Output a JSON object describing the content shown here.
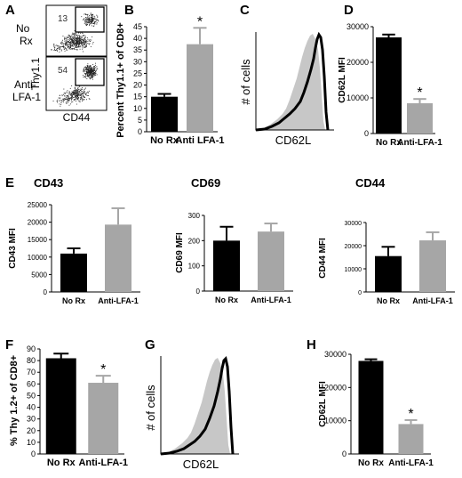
{
  "panels": {
    "A": {
      "letter": "A",
      "plots": [
        {
          "row_label_lines": [
            "No",
            "Rx"
          ],
          "gate_percent": "13"
        },
        {
          "row_label_lines": [
            "Anti-",
            "LFA-1"
          ],
          "gate_percent": "54"
        }
      ],
      "y_label": "Thy1.1",
      "x_label": "CD44"
    },
    "C": {
      "letter": "C",
      "y_label": "# of cells",
      "x_label": "CD62L"
    },
    "G": {
      "letter": "G",
      "y_label": "# of cells",
      "x_label": "CD62L"
    },
    "E": {
      "letter": "E"
    }
  },
  "chart_data": [
    {
      "id": "B",
      "letter": "B",
      "type": "bar",
      "title": "",
      "categories": [
        "No Rx",
        "Anti LFA-1"
      ],
      "values": [
        15,
        37.5
      ],
      "errors": [
        1.2,
        7
      ],
      "colors": [
        "#000000",
        "#a6a6a6"
      ],
      "ylabel": "Percent Thy1.1+ of CD8+",
      "ylim": [
        0,
        45
      ],
      "yticks": [
        0,
        5,
        10,
        15,
        20,
        25,
        30,
        35,
        40,
        45
      ],
      "significance": [
        "",
        "*"
      ]
    },
    {
      "id": "D",
      "letter": "D",
      "type": "bar",
      "title": "",
      "categories": [
        "No Rx",
        "Anti-LFA-1"
      ],
      "values": [
        27000,
        8500
      ],
      "errors": [
        800,
        1200
      ],
      "colors": [
        "#000000",
        "#a6a6a6"
      ],
      "ylabel": "CD62L MFI",
      "ylim": [
        0,
        30000
      ],
      "yticks": [
        0,
        10000,
        20000,
        30000
      ],
      "significance": [
        "",
        "*"
      ]
    },
    {
      "id": "E1",
      "letter": "",
      "type": "bar",
      "title": "CD43",
      "categories": [
        "No Rx",
        "Anti-LFA-1"
      ],
      "values": [
        11000,
        19300
      ],
      "errors": [
        1500,
        4700
      ],
      "colors": [
        "#000000",
        "#a6a6a6"
      ],
      "ylabel": "CD43 MFI",
      "ylim": [
        0,
        25000
      ],
      "yticks": [
        0,
        5000,
        10000,
        15000,
        20000,
        25000
      ],
      "significance": [
        "",
        ""
      ]
    },
    {
      "id": "E2",
      "letter": "",
      "type": "bar",
      "title": "CD69",
      "categories": [
        "No Rx",
        "Anti-LFA-1"
      ],
      "values": [
        200,
        236
      ],
      "errors": [
        55,
        32
      ],
      "colors": [
        "#000000",
        "#a6a6a6"
      ],
      "ylabel": "CD69 MFI",
      "ylim": [
        0,
        300
      ],
      "yticks": [
        0,
        100,
        200,
        300
      ],
      "significance": [
        "",
        ""
      ]
    },
    {
      "id": "E3",
      "letter": "",
      "type": "bar",
      "title": "CD44",
      "categories": [
        "No Rx",
        "Anti-LFA-1"
      ],
      "values": [
        15500,
        22300
      ],
      "errors": [
        4000,
        3500
      ],
      "colors": [
        "#000000",
        "#a6a6a6"
      ],
      "ylabel": "CD44 MFI",
      "ylim": [
        0,
        30000
      ],
      "yticks": [
        0,
        10000,
        20000,
        30000
      ],
      "significance": [
        "",
        ""
      ]
    },
    {
      "id": "F",
      "letter": "F",
      "type": "bar",
      "title": "",
      "categories": [
        "No Rx",
        "Anti-LFA-1"
      ],
      "values": [
        82,
        61
      ],
      "errors": [
        4,
        6
      ],
      "colors": [
        "#000000",
        "#a6a6a6"
      ],
      "ylabel": "% Thy 1.2+ of CD8+",
      "ylim": [
        0,
        90
      ],
      "yticks": [
        0,
        10,
        20,
        30,
        40,
        50,
        60,
        70,
        80,
        90
      ],
      "significance": [
        "",
        "*"
      ]
    },
    {
      "id": "H",
      "letter": "H",
      "type": "bar",
      "title": "",
      "categories": [
        "No Rx",
        "Anti-LFA-1"
      ],
      "values": [
        28000,
        9000
      ],
      "errors": [
        500,
        1200
      ],
      "colors": [
        "#000000",
        "#a6a6a6"
      ],
      "ylabel": "CD62L MFI",
      "ylim": [
        0,
        30000
      ],
      "yticks": [
        0,
        10000,
        20000,
        30000
      ],
      "significance": [
        "",
        "*"
      ]
    }
  ]
}
